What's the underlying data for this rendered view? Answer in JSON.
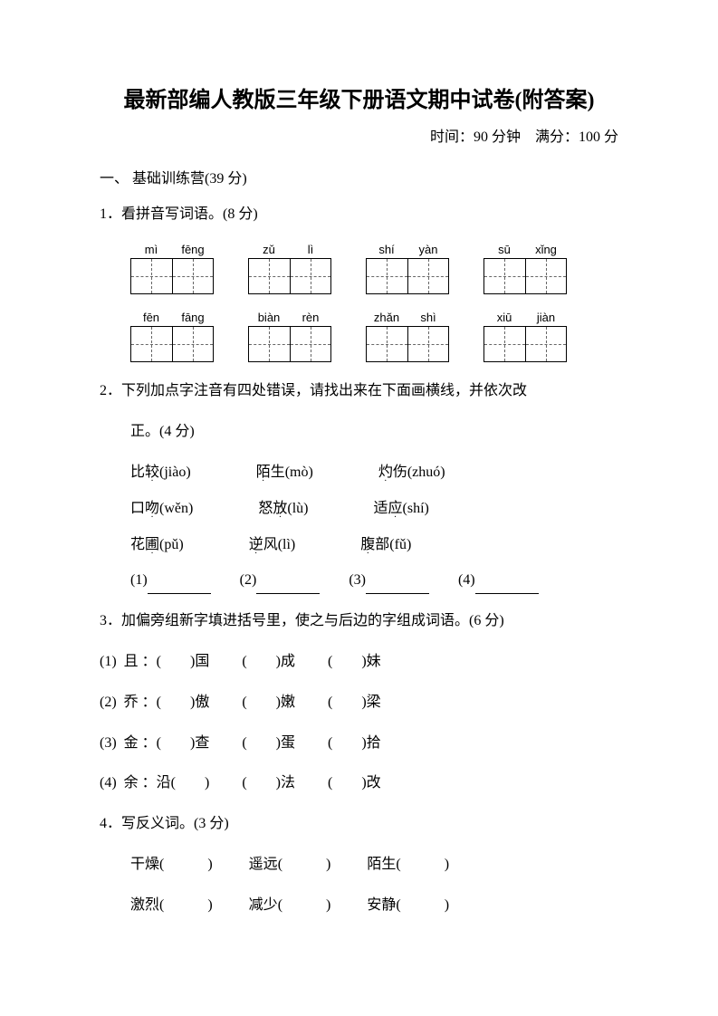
{
  "title": "最新部编人教版三年级下册语文期中试卷(附答案)",
  "subtitle": "时间：90 分钟 满分：100 分",
  "section1": "一、 基础训练营(39 分)",
  "q1": {
    "prompt": "1．看拼音写词语。(8 分)",
    "row1": [
      {
        "a": "mì",
        "b": "fēng"
      },
      {
        "a": "zǔ",
        "b": "lì"
      },
      {
        "a": "shí",
        "b": "yàn"
      },
      {
        "a": "sū",
        "b": "xǐng"
      }
    ],
    "row2": [
      {
        "a": "fēn",
        "b": "fāng"
      },
      {
        "a": "biàn",
        "b": "rèn"
      },
      {
        "a": "zhǎn",
        "b": "shì"
      },
      {
        "a": "xiū",
        "b": "jiàn"
      }
    ]
  },
  "q2": {
    "prompt_l1": "2．下列加点字注音有四处错误，请找出来在下面画横线，并依次改",
    "prompt_l2": "正。(4 分)",
    "rows": [
      [
        {
          "pre": "比",
          "dot": "较",
          "py": "(jiào)"
        },
        {
          "pre": "",
          "dot": "陌",
          "post": "生",
          "py": "(mò)"
        },
        {
          "pre": "",
          "dot": "灼",
          "post": "伤",
          "py": "(zhuó)"
        }
      ],
      [
        {
          "pre": "口",
          "dot": "吻",
          "py": "(wěn)"
        },
        {
          "pre": "怒",
          "dot": "放",
          "py": "(lù)"
        },
        {
          "pre": "适",
          "dot": "应",
          "py": "(shí)"
        }
      ],
      [
        {
          "pre": "花",
          "dot": "圃",
          "py": "(pǔ)"
        },
        {
          "pre": "",
          "dot": "逆",
          "post": "风",
          "py": "(lì)"
        },
        {
          "pre": "",
          "dot": "腹",
          "post": "部",
          "py": "(fǔ)"
        }
      ]
    ],
    "blanks": [
      "(1)",
      "(2)",
      "(3)",
      "(4)"
    ]
  },
  "q3": {
    "prompt": "3．加偏旁组新字填进括号里，使之与后边的字组成词语。(6 分)",
    "rows": [
      {
        "n": "(1)",
        "ch": "且",
        "w": [
          "国",
          "成",
          "妹"
        ]
      },
      {
        "n": "(2)",
        "ch": "乔",
        "w": [
          "傲",
          "嫩",
          "梁"
        ]
      },
      {
        "n": "(3)",
        "ch": "金",
        "w": [
          "查",
          "蛋",
          "拾"
        ]
      },
      {
        "n": "(4)",
        "ch": "余",
        "w_pre": "沿",
        "w": [
          "法",
          "改"
        ]
      }
    ]
  },
  "q4": {
    "prompt": "4．写反义词。(3 分)",
    "row1": [
      "干燥",
      "遥远",
      "陌生"
    ],
    "row2": [
      "激烈",
      "减少",
      "安静"
    ]
  }
}
